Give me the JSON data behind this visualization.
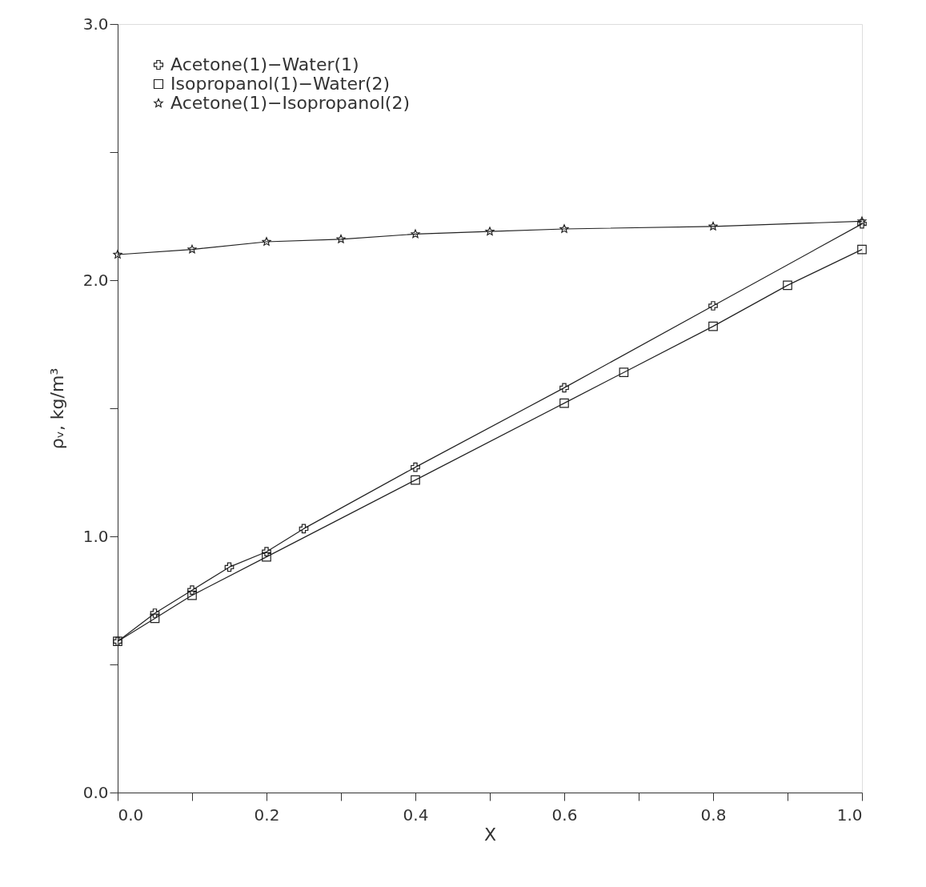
{
  "chart_data": {
    "type": "line",
    "xlabel": "X",
    "ylabel": "ρᵥ, kg/m³",
    "xlim": [
      0,
      1
    ],
    "ylim": [
      0,
      3
    ],
    "xticks": [
      {
        "value": 0,
        "label": "0.0"
      },
      {
        "value": 0.1,
        "label": null
      },
      {
        "value": 0.2,
        "label": "0.2"
      },
      {
        "value": 0.3,
        "label": null
      },
      {
        "value": 0.4,
        "label": "0.4"
      },
      {
        "value": 0.5,
        "label": null
      },
      {
        "value": 0.6,
        "label": "0.6"
      },
      {
        "value": 0.7,
        "label": null
      },
      {
        "value": 0.8,
        "label": "0.8"
      },
      {
        "value": 0.9,
        "label": null
      },
      {
        "value": 1,
        "label": "1.0"
      }
    ],
    "yticks": [
      {
        "value": 0,
        "label": "0.0"
      },
      {
        "value": 0.5,
        "label": null
      },
      {
        "value": 1,
        "label": "1.0"
      },
      {
        "value": 1.5,
        "label": null
      },
      {
        "value": 2,
        "label": "2.0"
      },
      {
        "value": 2.5,
        "label": null
      },
      {
        "value": 3,
        "label": "3.0"
      }
    ],
    "grid": false,
    "legend": "top left",
    "line_style": "solid",
    "series": [
      {
        "name": "Acetone(1)−Water(1)",
        "color": "#222222",
        "marker": "cross",
        "x": [
          0,
          0.05,
          0.1,
          0.15,
          0.2,
          0.25,
          0.4,
          0.6,
          0.8,
          1.0
        ],
        "values": [
          0.59,
          0.7,
          0.79,
          0.88,
          0.94,
          1.03,
          1.27,
          1.58,
          1.9,
          2.22
        ]
      },
      {
        "name": "Isopropanol(1)−Water(2)",
        "color": "#222222",
        "marker": "square",
        "x": [
          0,
          0.05,
          0.1,
          0.2,
          0.4,
          0.6,
          0.68,
          0.8,
          0.9,
          1.0
        ],
        "values": [
          0.59,
          0.68,
          0.77,
          0.92,
          1.22,
          1.52,
          1.64,
          1.82,
          1.98,
          2.12
        ]
      },
      {
        "name": "Acetone(1)−Isopropanol(2)",
        "color": "#222222",
        "marker": "star",
        "x": [
          0,
          0.1,
          0.2,
          0.3,
          0.4,
          0.5,
          0.6,
          0.8,
          1.0
        ],
        "values": [
          2.1,
          2.12,
          2.15,
          2.16,
          2.18,
          2.19,
          2.2,
          2.21,
          2.23
        ]
      }
    ]
  }
}
